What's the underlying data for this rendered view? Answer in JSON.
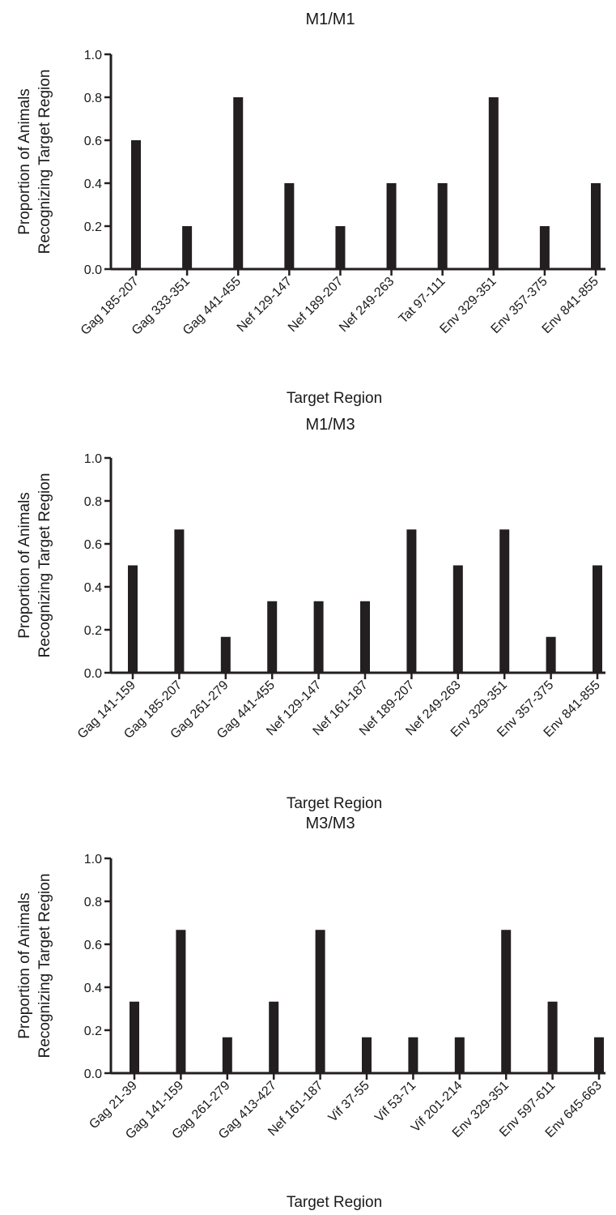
{
  "chart_data": [
    {
      "type": "bar",
      "title": "M1/M1",
      "ylabel": [
        "Proportion of Animals",
        "Recognizing Target Region"
      ],
      "xlabel": "Target Region",
      "ylim": [
        0,
        1.0
      ],
      "yticks": [
        "0.0",
        "0.2",
        "0.4",
        "0.6",
        "0.8",
        "1.0"
      ],
      "categories": [
        "Gag 185-207",
        "Gag 333-351",
        "Gag 441-455",
        "Nef 129-147",
        "Nef 189-207",
        "Nef 249-263",
        "Tat 97-111",
        "Env 329-351",
        "Env 357-375",
        "Env 841-855"
      ],
      "values": [
        0.6,
        0.2,
        0.8,
        0.4,
        0.2,
        0.4,
        0.4,
        0.8,
        0.2,
        0.4
      ],
      "grid": false,
      "bar_color": "#231f20"
    },
    {
      "type": "bar",
      "title": "M1/M3",
      "ylabel": [
        "Proportion of Animals",
        "Recognizing Target Region"
      ],
      "xlabel": "Target Region",
      "ylim": [
        0,
        1.0
      ],
      "yticks": [
        "0.0",
        "0.2",
        "0.4",
        "0.6",
        "0.8",
        "1.0"
      ],
      "categories": [
        "Gag 141-159",
        "Gag 185-207",
        "Gag 261-279",
        "Gag 441-455",
        "Nef 129-147",
        "Nef 161-187",
        "Nef 189-207",
        "Nef 249-263",
        "Env 329-351",
        "Env 357-375",
        "Env 841-855"
      ],
      "values": [
        0.5,
        0.667,
        0.167,
        0.333,
        0.333,
        0.333,
        0.667,
        0.5,
        0.667,
        0.167,
        0.5
      ],
      "grid": false,
      "bar_color": "#231f20"
    },
    {
      "type": "bar",
      "title": "M3/M3",
      "ylabel": [
        "Proportion of Animals",
        "Recognizing Target Region"
      ],
      "xlabel": "Target Region",
      "ylim": [
        0,
        1.0
      ],
      "yticks": [
        "0.0",
        "0.2",
        "0.4",
        "0.6",
        "0.8",
        "1.0"
      ],
      "categories": [
        "Gag 21-39",
        "Gag 141-159",
        "Gag 261-279",
        "Gag 413-427",
        "Nef 161-187",
        "Vif 37-55",
        "Vif 53-71",
        "Vif 201-214",
        "Env 329-351",
        "Env 597-611",
        "Env 645-663"
      ],
      "values": [
        0.333,
        0.667,
        0.167,
        0.333,
        0.667,
        0.167,
        0.167,
        0.167,
        0.667,
        0.333,
        0.167
      ],
      "grid": false,
      "bar_color": "#231f20"
    }
  ]
}
